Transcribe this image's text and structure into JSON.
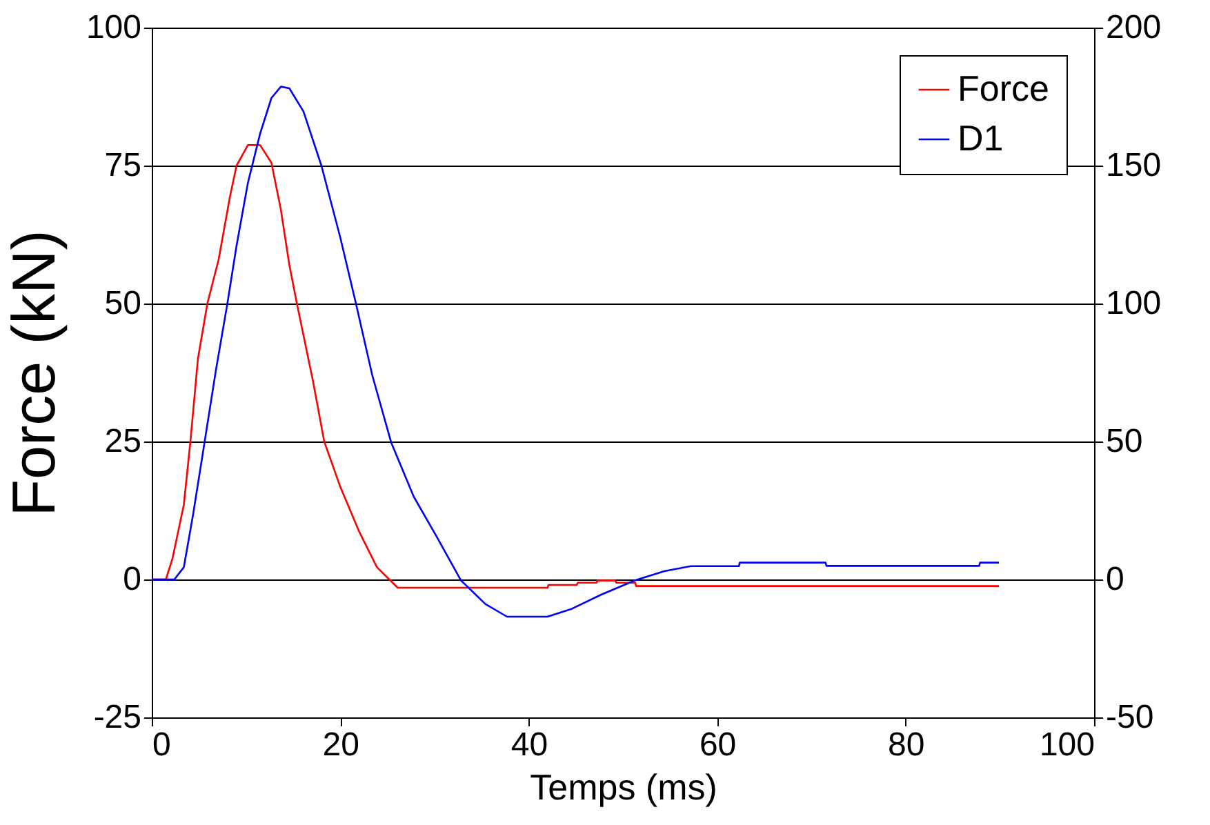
{
  "chart_data": {
    "type": "line",
    "xlabel": "Temps (ms)",
    "ylabel": "Force (kN)",
    "xlim": [
      0,
      100
    ],
    "xticks": [
      0,
      20,
      40,
      60,
      80,
      100
    ],
    "ylim": [
      -25,
      100
    ],
    "yticks": [
      -25,
      0,
      25,
      50,
      75,
      100
    ],
    "y2lim": [
      -50,
      200
    ],
    "y2ticks": [
      -50,
      0,
      50,
      100,
      150,
      200
    ],
    "grid": "y",
    "legend": "top right",
    "series": [
      {
        "name": "Force",
        "color": "#ff0000",
        "x": [
          0,
          1.5,
          2.2,
          3.4,
          4.1,
          4.9,
          5.9,
          7.1,
          8.3,
          9.0,
          10.2,
          11.5,
          12.7,
          13.7,
          14.6,
          15.4,
          17.1,
          18.3,
          20,
          22,
          23.9,
          26.1,
          42,
          42.1,
          45.1,
          45.2,
          47.2,
          47.3,
          49.2,
          49.3,
          51.3,
          51.4,
          89.9
        ],
        "values": [
          0,
          0,
          3.8,
          13.5,
          25,
          40,
          50,
          58,
          69.4,
          75,
          78.7,
          78.7,
          75.5,
          67,
          57,
          50,
          36,
          25,
          16.8,
          8.7,
          2.2,
          -1.5,
          -1.5,
          -1,
          -1,
          -0.6,
          -0.6,
          -0.2,
          -0.2,
          -0.6,
          -0.6,
          -1.2,
          -1.2
        ]
      },
      {
        "name": "D1",
        "color": "#0000ff",
        "axis": "y2",
        "x": [
          0,
          2.4,
          3.4,
          4.4,
          5.6,
          6.8,
          8.0,
          9.0,
          10.2,
          11.5,
          12.7,
          13.7,
          14.6,
          16.1,
          18,
          20,
          21.7,
          23.4,
          25.4,
          27.8,
          30.2,
          32.8,
          35.4,
          37.7,
          42,
          44.6,
          47.7,
          51.3,
          54.4,
          57.2,
          62.3,
          62.4,
          71.5,
          71.6,
          87.8,
          87.9,
          89.9
        ],
        "values": [
          0,
          0,
          4.4,
          23.8,
          49.7,
          75.7,
          99.5,
          121,
          143.7,
          161.6,
          174.5,
          178.6,
          178,
          169.6,
          150,
          124,
          99.5,
          74,
          49.7,
          30,
          15.7,
          -0.3,
          -8.9,
          -13.5,
          -13.5,
          -10.6,
          -5.5,
          -0.3,
          3,
          4.8,
          4.8,
          6.1,
          6.1,
          4.9,
          4.9,
          6.1,
          6.1
        ]
      }
    ]
  }
}
